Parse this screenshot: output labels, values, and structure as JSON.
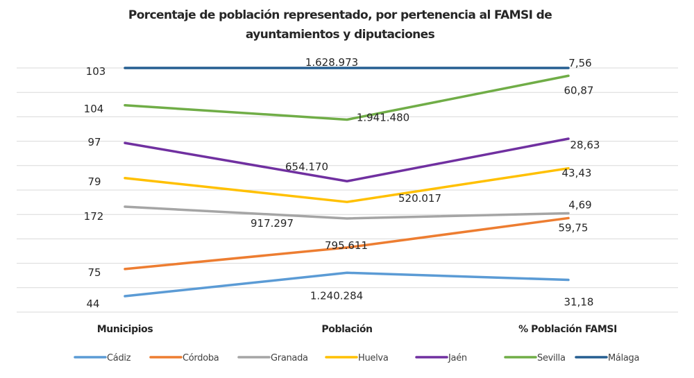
{
  "chart_data": {
    "type": "line",
    "stacking": "percent",
    "title": "Porcentaje de población representado, por pertenencia al FAMSI de ayuntamientos y diputaciones",
    "title_lines": [
      "Porcentaje de población representado, por pertenencia al FAMSI de",
      "ayuntamientos y diputaciones"
    ],
    "xlabel": "",
    "ylabel": "",
    "categories": [
      "Municipios",
      "Población",
      "% Población FAMSI"
    ],
    "ylim": [
      0,
      100
    ],
    "grid": true,
    "gridlines": 10,
    "legend_position": "bottom",
    "series": [
      {
        "name": "Cádiz",
        "color": "#5B9BD5",
        "values": [
          44,
          1240284,
          31.18
        ],
        "labels": [
          "44",
          "1.240.284",
          "31,18"
        ]
      },
      {
        "name": "Córdoba",
        "color": "#ED7D31",
        "values": [
          75,
          795611,
          59.75
        ],
        "labels": [
          "75",
          "795.611",
          "59,75"
        ]
      },
      {
        "name": "Granada",
        "color": "#A5A5A5",
        "values": [
          172,
          917297,
          4.69
        ],
        "labels": [
          "172",
          "917.297",
          "4,69"
        ]
      },
      {
        "name": "Huelva",
        "color": "#FFC000",
        "values": [
          79,
          520017,
          43.43
        ],
        "labels": [
          "79",
          "520.017",
          "43,43"
        ]
      },
      {
        "name": "Jaén",
        "color": "#7030A0",
        "values": [
          97,
          654170,
          28.63
        ],
        "labels": [
          "97",
          "654.170",
          "28,63"
        ]
      },
      {
        "name": "Sevilla",
        "color": "#70AD47",
        "values": [
          104,
          1941480,
          60.87
        ],
        "labels": [
          "104",
          "1.941.480",
          "60,87"
        ]
      },
      {
        "name": "Málaga",
        "color": "#255E91",
        "values": [
          103,
          1628973,
          7.56
        ],
        "labels": [
          "103",
          "1.628.973",
          "7,56"
        ]
      }
    ]
  }
}
